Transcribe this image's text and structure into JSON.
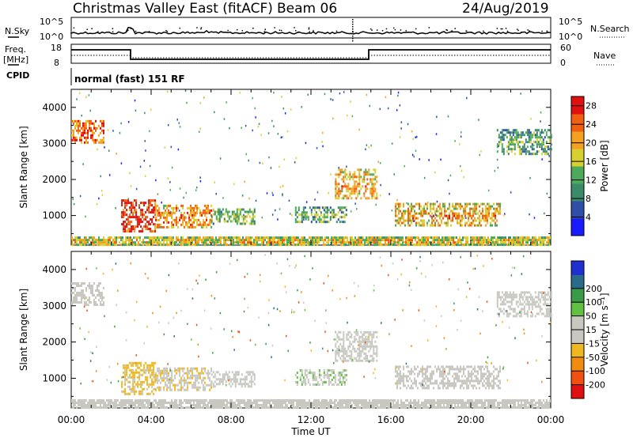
{
  "header": {
    "station": "Christmas Valley East (fitACF)",
    "beam": "Beam 06",
    "date": "24/Aug/2019"
  },
  "panels": {
    "nsky_label": "N.Sky",
    "nsearch_label": "N.Search",
    "nsky_ticks": [
      "10^5",
      "10^0"
    ],
    "nsearch_ticks": [
      "10^5",
      "10^0"
    ],
    "freq_label_1": "Freq.",
    "freq_label_2": "[MHz]",
    "freq_ticks": [
      "18",
      "8"
    ],
    "nave_label": "Nave",
    "nave_ticks": [
      "60",
      "0"
    ],
    "cpid_label": "CPID",
    "cpid_text": "normal (fast) 151 RF"
  },
  "colors": {
    "power_scale": [
      "#1a1aff",
      "#2d4fa8",
      "#3b8a6a",
      "#4daa5a",
      "#d8d030",
      "#f4a020",
      "#f06010",
      "#e01010"
    ],
    "velocity_scale": [
      "#e01010",
      "#f05010",
      "#f28c10",
      "#f0b820",
      "#c8c8c0",
      "#c8c8c0",
      "#60c040",
      "#3a9a4a",
      "#2a6a8a",
      "#2030d0"
    ]
  },
  "chart_data": [
    {
      "type": "heatmap",
      "quantity": "Power",
      "ylabel": "Slant Range [km]",
      "xlabel": "Time UT",
      "x_ticks": [
        "00:00",
        "04:00",
        "08:00",
        "12:00",
        "16:00",
        "20:00",
        "00:00"
      ],
      "x_range_hours": [
        0,
        24
      ],
      "y_ticks": [
        1000,
        2000,
        3000,
        4000
      ],
      "ylim": [
        180,
        4500
      ],
      "colorbar_label": "Power [dB]",
      "colorbar_ticks": [
        4,
        8,
        12,
        16,
        20,
        24,
        28
      ],
      "colorbar_range": [
        0,
        30
      ],
      "echo_regions": [
        {
          "t": [
            0.0,
            1.6
          ],
          "r": [
            3050,
            3650
          ],
          "level": 22
        },
        {
          "t": [
            2.5,
            4.2
          ],
          "r": [
            550,
            1450
          ],
          "level": 26
        },
        {
          "t": [
            4.2,
            7.0
          ],
          "r": [
            700,
            1300
          ],
          "level": 20
        },
        {
          "t": [
            7.0,
            9.2
          ],
          "r": [
            800,
            1200
          ],
          "level": 12
        },
        {
          "t": [
            11.2,
            13.8
          ],
          "r": [
            850,
            1250
          ],
          "level": 10
        },
        {
          "t": [
            13.2,
            15.3
          ],
          "r": [
            1500,
            2300
          ],
          "level": 18
        },
        {
          "t": [
            16.2,
            21.5
          ],
          "r": [
            700,
            1350
          ],
          "level": 18
        },
        {
          "t": [
            21.3,
            24.0
          ],
          "r": [
            2700,
            3400
          ],
          "level": 10
        },
        {
          "t": [
            0.0,
            24.0
          ],
          "r": [
            220,
            420
          ],
          "level": 16
        }
      ]
    },
    {
      "type": "heatmap",
      "quantity": "Velocity",
      "ylabel": "Slant Range [km]",
      "xlabel": "Time UT",
      "x_ticks": [
        "00:00",
        "04:00",
        "08:00",
        "12:00",
        "16:00",
        "20:00",
        "00:00"
      ],
      "x_range_hours": [
        0,
        24
      ],
      "y_ticks": [
        1000,
        2000,
        3000,
        4000
      ],
      "ylim": [
        180,
        4500
      ],
      "colorbar_label": "Velocity [m s⁻¹]",
      "colorbar_ticks": [
        200,
        100,
        50,
        15,
        -15,
        -50,
        -100,
        -200
      ],
      "colorbar_range": [
        -250,
        250
      ],
      "echo_regions": [
        {
          "t": [
            0.0,
            1.6
          ],
          "r": [
            3050,
            3650
          ],
          "level": 0
        },
        {
          "t": [
            2.5,
            4.2
          ],
          "r": [
            550,
            1450
          ],
          "level": -60
        },
        {
          "t": [
            4.2,
            7.0
          ],
          "r": [
            700,
            1300
          ],
          "level": -40
        },
        {
          "t": [
            7.0,
            9.2
          ],
          "r": [
            800,
            1200
          ],
          "level": 0
        },
        {
          "t": [
            11.2,
            13.8
          ],
          "r": [
            850,
            1250
          ],
          "level": 40
        },
        {
          "t": [
            13.2,
            15.3
          ],
          "r": [
            1500,
            2300
          ],
          "level": 0
        },
        {
          "t": [
            16.2,
            21.5
          ],
          "r": [
            700,
            1350
          ],
          "level": 0
        },
        {
          "t": [
            21.3,
            24.0
          ],
          "r": [
            2700,
            3400
          ],
          "level": 0
        },
        {
          "t": [
            0.0,
            24.0
          ],
          "r": [
            220,
            420
          ],
          "level": -30
        }
      ]
    }
  ]
}
